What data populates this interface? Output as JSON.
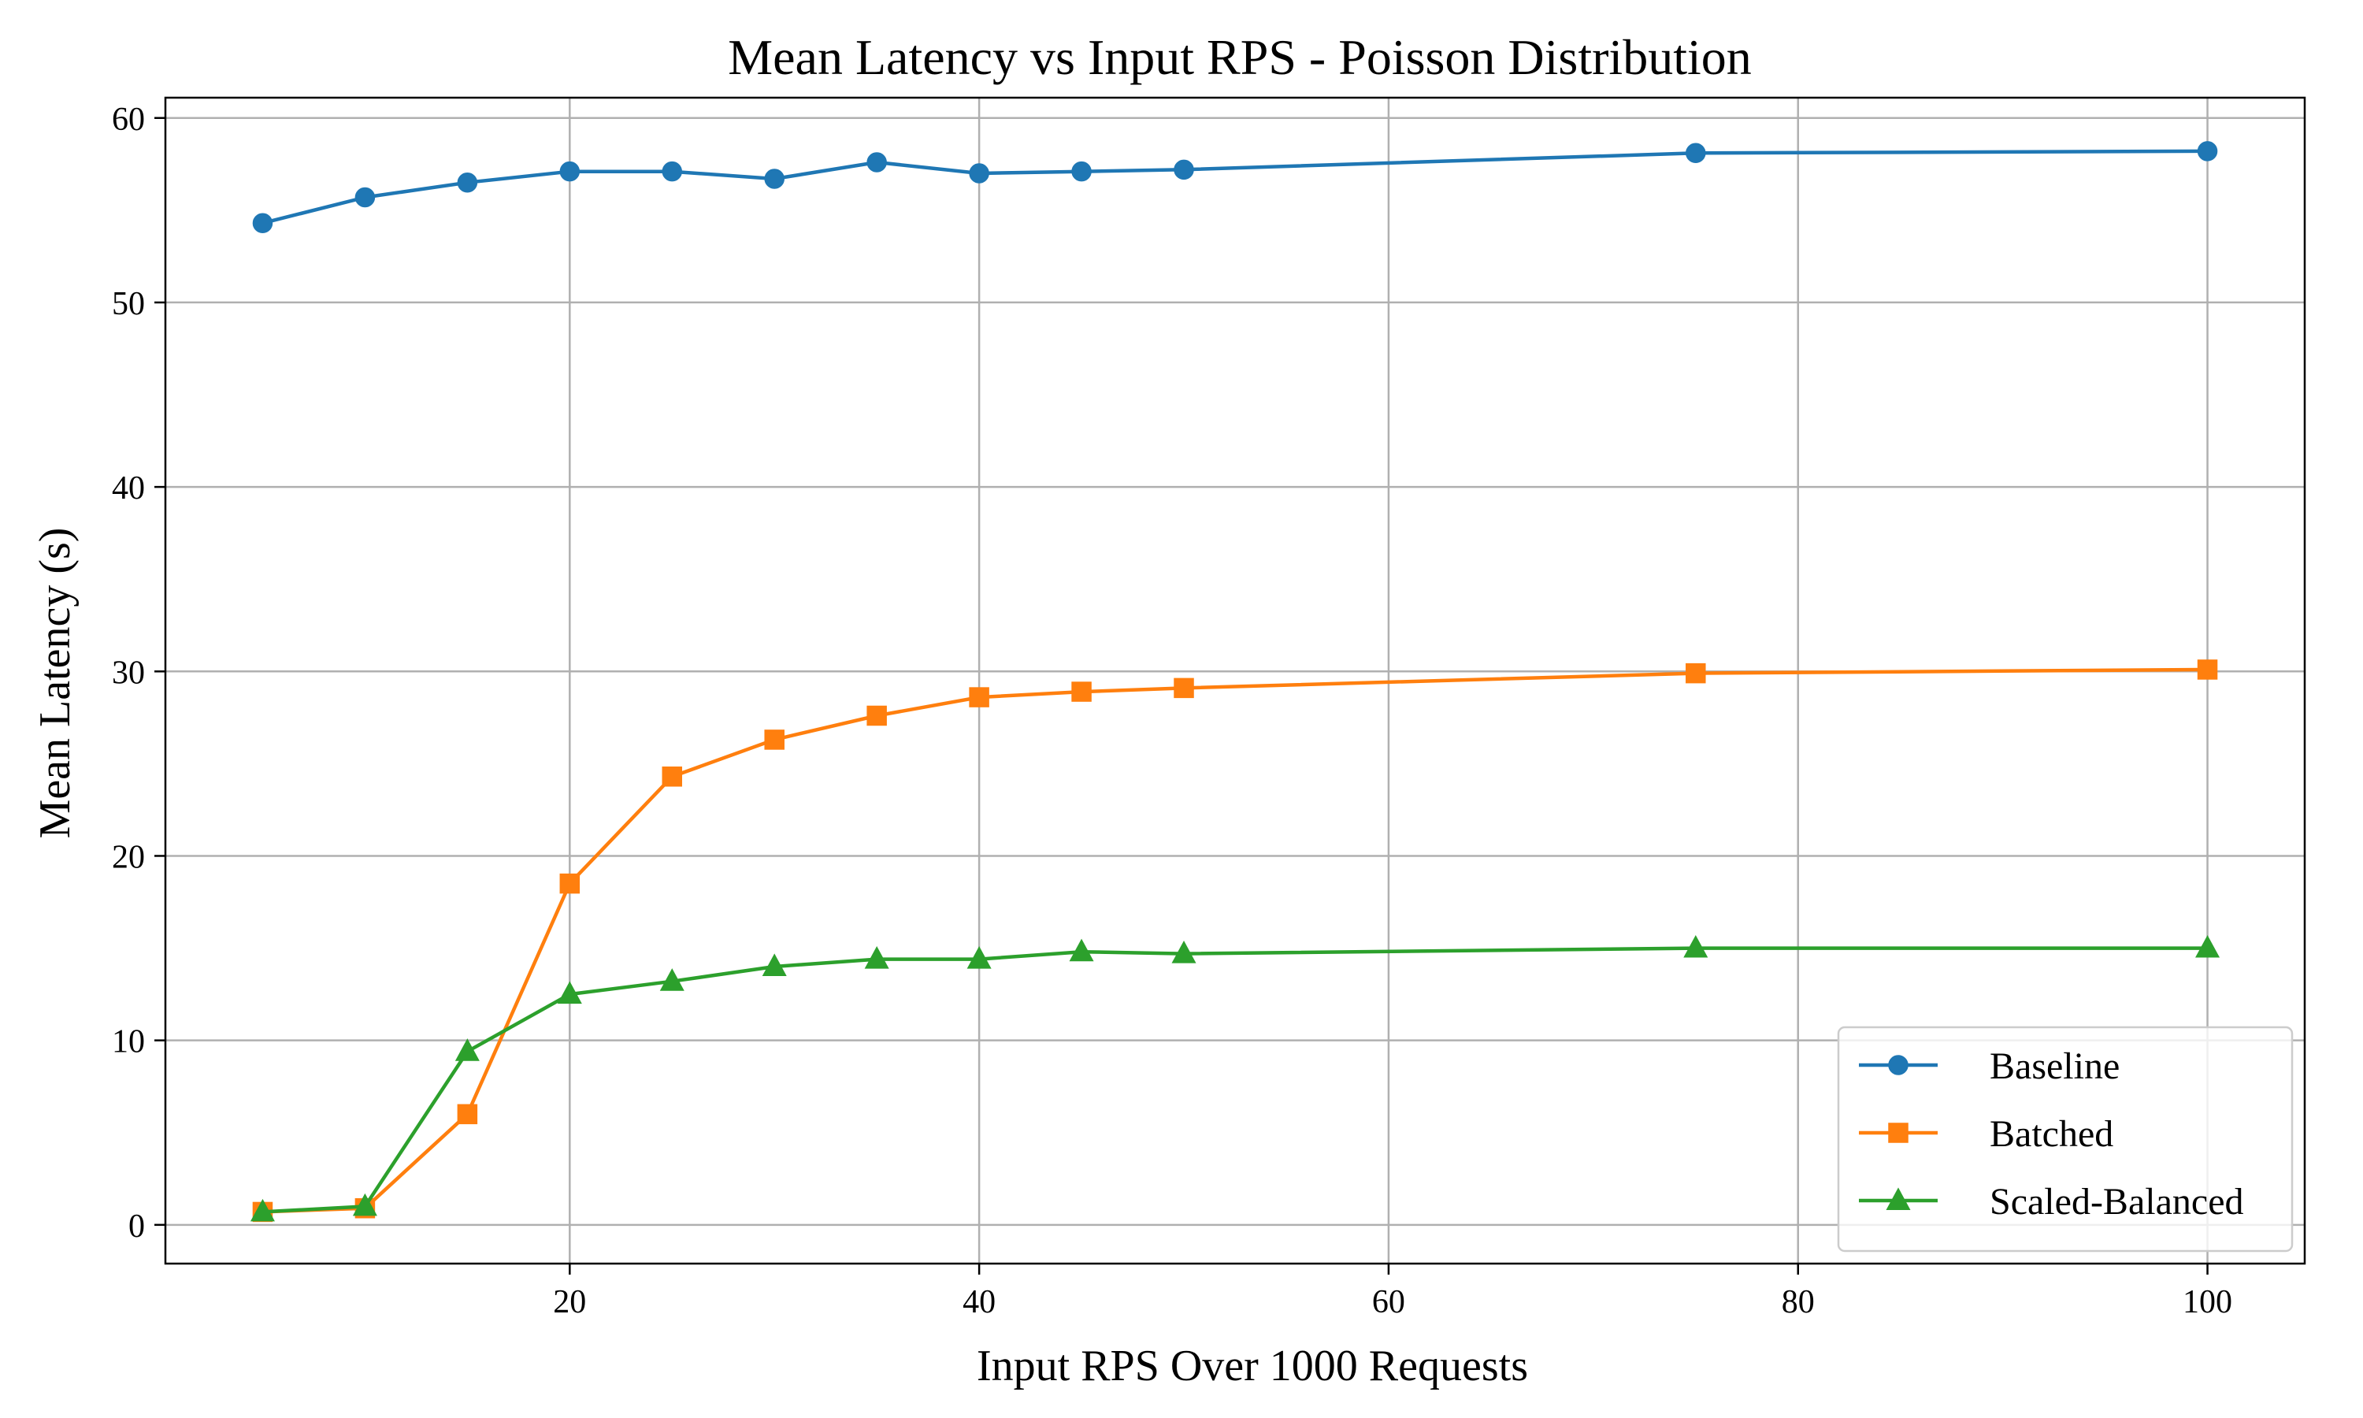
{
  "chart_data": {
    "type": "line",
    "title": "Mean Latency vs Input RPS - Poisson Distribution",
    "xlabel": "Input RPS Over 1000 Requests",
    "ylabel": "Mean Latency (s)",
    "xlim": [
      0.25,
      104.75
    ],
    "ylim": [
      -2.1,
      61.1
    ],
    "xticks": [
      20,
      40,
      60,
      80,
      100
    ],
    "yticks": [
      0,
      10,
      20,
      30,
      40,
      50,
      60
    ],
    "grid": true,
    "legend_position": "bottom-right",
    "x": [
      5,
      10,
      15,
      20,
      25,
      30,
      35,
      40,
      45,
      50,
      75,
      100
    ],
    "series": [
      {
        "name": "Baseline",
        "color": "#1f77b4",
        "marker": "circle",
        "values": [
          54.3,
          55.7,
          56.5,
          57.1,
          57.1,
          56.7,
          57.6,
          57.0,
          57.1,
          57.2,
          58.1,
          58.2
        ]
      },
      {
        "name": "Batched",
        "color": "#ff7f0e",
        "marker": "square",
        "values": [
          0.7,
          0.9,
          6.0,
          18.5,
          24.3,
          26.3,
          27.6,
          28.6,
          28.9,
          29.1,
          29.9,
          30.1
        ]
      },
      {
        "name": "Scaled-Balanced",
        "color": "#2ca02c",
        "marker": "triangle",
        "values": [
          0.7,
          1.0,
          9.4,
          12.5,
          13.2,
          14.0,
          14.4,
          14.4,
          14.8,
          14.7,
          15.0,
          15.0
        ]
      }
    ]
  }
}
